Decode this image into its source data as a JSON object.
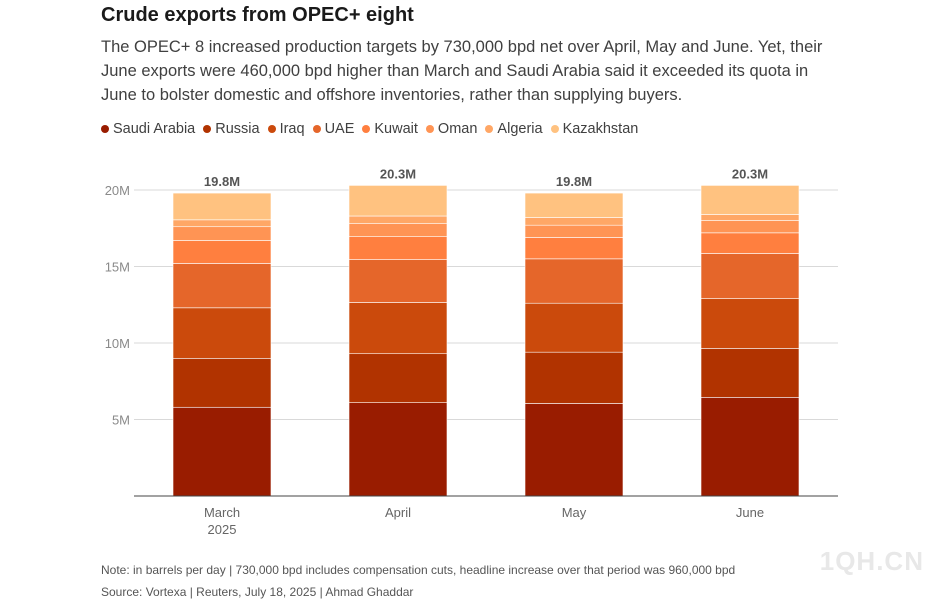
{
  "title": "Crude exports from OPEC+ eight",
  "subtitle": "The OPEC+ 8 increased production targets by 730,000 bpd net over April, May and June. Yet, their June exports were 460,000 bpd higher than March and Saudi Arabia said it exceeded its quota in June to bolster domestic and offshore inventories, rather than supplying buyers.",
  "note": "Note: in barrels per day | 730,000 bpd includes compensation cuts, headline increase over that period was 960,000 bpd",
  "source": "Source: Vortexa | Reuters, July 18, 2025 | Ahmad Ghaddar",
  "watermark": "1QH.CN",
  "chart_data": {
    "type": "bar",
    "stacked": true,
    "categories": [
      "March\n2025",
      "April",
      "May",
      "June"
    ],
    "yticks": [
      {
        "value": 5000000,
        "label": "5M"
      },
      {
        "value": 10000000,
        "label": "10M"
      },
      {
        "value": 15000000,
        "label": "15M"
      },
      {
        "value": 20000000,
        "label": "20M"
      }
    ],
    "ylim": [
      0,
      20000000
    ],
    "grid": true,
    "legend_position": "top-left",
    "totals": [
      "19.8M",
      "20.3M",
      "19.8M",
      "20.3M"
    ],
    "series": [
      {
        "name": "Saudi Arabia",
        "color": "#991c00",
        "values": [
          5800000,
          6100000,
          6050000,
          6450000
        ]
      },
      {
        "name": "Russia",
        "color": "#b13300",
        "values": [
          3200000,
          3200000,
          3350000,
          3200000
        ]
      },
      {
        "name": "Iraq",
        "color": "#cb4a0c",
        "values": [
          3300000,
          3350000,
          3200000,
          3250000
        ]
      },
      {
        "name": "UAE",
        "color": "#e5662a",
        "values": [
          2900000,
          2800000,
          2900000,
          2950000
        ]
      },
      {
        "name": "Kuwait",
        "color": "#ff7f3f",
        "values": [
          1500000,
          1500000,
          1400000,
          1350000
        ]
      },
      {
        "name": "Oman",
        "color": "#ff9454",
        "values": [
          900000,
          850000,
          800000,
          800000
        ]
      },
      {
        "name": "Algeria",
        "color": "#ffa766",
        "values": [
          450000,
          500000,
          500000,
          400000
        ]
      },
      {
        "name": "Kazakhstan",
        "color": "#ffc280",
        "values": [
          1750000,
          2000000,
          1600000,
          1900000
        ]
      }
    ]
  }
}
